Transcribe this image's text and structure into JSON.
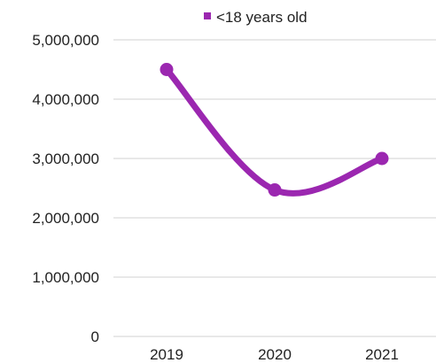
{
  "chart_data": {
    "type": "line",
    "categories": [
      "2019",
      "2020",
      "2021"
    ],
    "series": [
      {
        "name": "<18 years old",
        "values": [
          4500000,
          2470000,
          3000000
        ],
        "color": "#9b27b0"
      }
    ],
    "ylim": [
      0,
      5000000
    ],
    "yticks": [
      0,
      1000000,
      2000000,
      3000000,
      4000000,
      5000000
    ],
    "ytick_labels": [
      "0",
      "1,000,000",
      "2,000,000",
      "3,000,000",
      "4,000,000",
      "5,000,000"
    ],
    "grid": true,
    "smooth": true,
    "legend_position": "top",
    "gridline_color": "#d0d0d0"
  }
}
